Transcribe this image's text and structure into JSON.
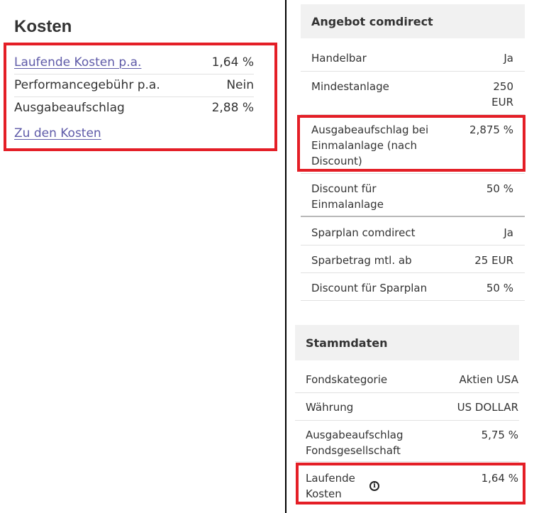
{
  "kosten": {
    "title": "Kosten",
    "rows": [
      {
        "label": "Laufende Kosten p.a.",
        "value": "1,64 %"
      },
      {
        "label": "Performancegebühr p.a.",
        "value": "Nein"
      },
      {
        "label": "Ausgabeaufschlag",
        "value": "2,88 %"
      }
    ],
    "link": "Zu den Kosten"
  },
  "angebot": {
    "title": "Angebot comdirect",
    "rows": [
      {
        "label": "Handelbar",
        "value": "Ja"
      },
      {
        "label": "Mindestanlage",
        "value": "250\nEUR"
      },
      {
        "label": "Ausgabeaufschlag bei Einmalanlage (nach Discount)",
        "value": "2,875 %"
      },
      {
        "label": "Discount für Einmalanlage",
        "value": "50 %"
      },
      {
        "label": "Sparplan comdirect",
        "value": "Ja"
      },
      {
        "label": "Sparbetrag mtl. ab",
        "value": "25 EUR"
      },
      {
        "label": "Discount für Sparplan",
        "value": "50 %"
      }
    ]
  },
  "stammdaten": {
    "title": "Stammdaten",
    "rows": [
      {
        "label": "Fondskategorie",
        "value": "Aktien USA"
      },
      {
        "label": "Währung",
        "value": "US DOLLAR"
      },
      {
        "label": "Ausgabeaufschlag Fondsgesellschaft",
        "value": "5,75 %"
      },
      {
        "label": "Laufende Kosten",
        "value": "1,64 %",
        "icon": "info-icon"
      }
    ]
  },
  "colors": {
    "highlight": "#e41e26",
    "link": "#5e5aa8",
    "header_bg": "#f1f1f1"
  }
}
